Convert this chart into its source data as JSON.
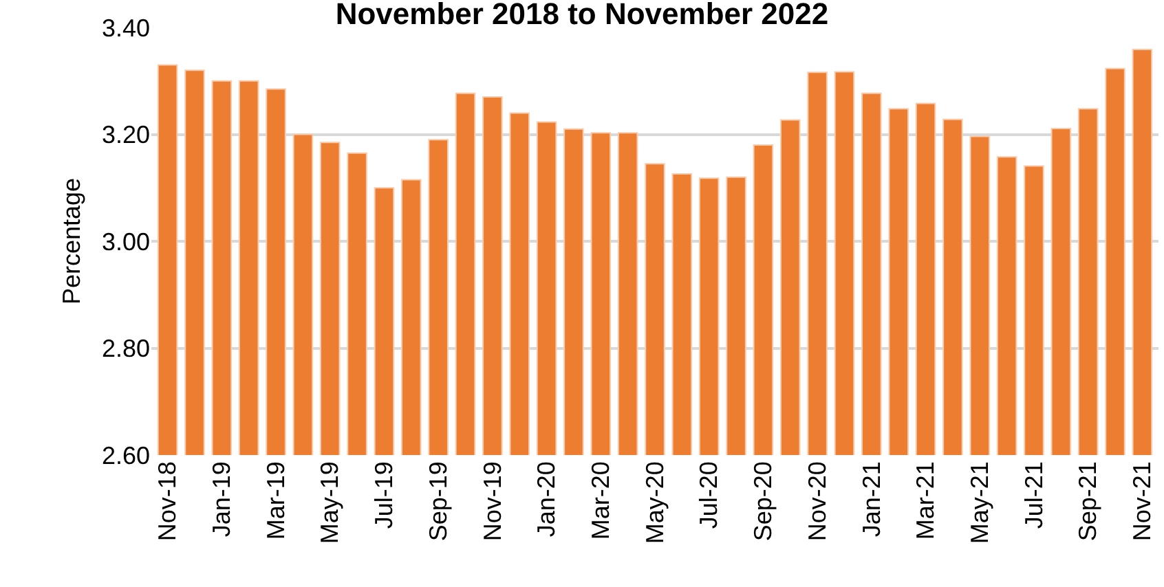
{
  "chart_data": {
    "type": "bar",
    "title": "November 2018 to November 2022",
    "ylabel": "Percentage",
    "categories": [
      "Nov-18",
      null,
      "Jan-19",
      null,
      "Mar-19",
      null,
      "May-19",
      null,
      "Jul-19",
      null,
      "Sep-19",
      null,
      "Nov-19",
      null,
      "Jan-20",
      null,
      "Mar-20",
      null,
      "May-20",
      null,
      "Jul-20",
      null,
      "Sep-20",
      null,
      "Nov-20",
      null,
      "Jan-21",
      null,
      "Mar-21",
      null,
      "May-21",
      null,
      "Jul-21",
      null,
      "Sep-21",
      null,
      "Nov-21"
    ],
    "values": [
      3.33,
      3.32,
      3.3,
      3.3,
      3.285,
      3.2,
      3.185,
      3.165,
      3.1,
      3.115,
      3.19,
      3.277,
      3.27,
      3.24,
      3.223,
      3.21,
      3.203,
      3.203,
      3.145,
      3.126,
      3.118,
      3.12,
      3.18,
      3.227,
      3.316,
      3.317,
      3.277,
      3.248,
      3.258,
      3.228,
      3.196,
      3.158,
      3.141,
      3.211,
      3.248,
      3.323,
      3.359
    ],
    "color": "#ed7d31",
    "ylim": [
      2.6,
      3.4
    ],
    "yticks": [
      {
        "value": 2.6,
        "label": "2.60"
      },
      {
        "value": 2.8,
        "label": "2.80"
      },
      {
        "value": 3.0,
        "label": "3.00"
      },
      {
        "value": 3.2,
        "label": "3.20"
      },
      {
        "value": 3.4,
        "label": "3.40"
      }
    ],
    "grid": "y"
  }
}
